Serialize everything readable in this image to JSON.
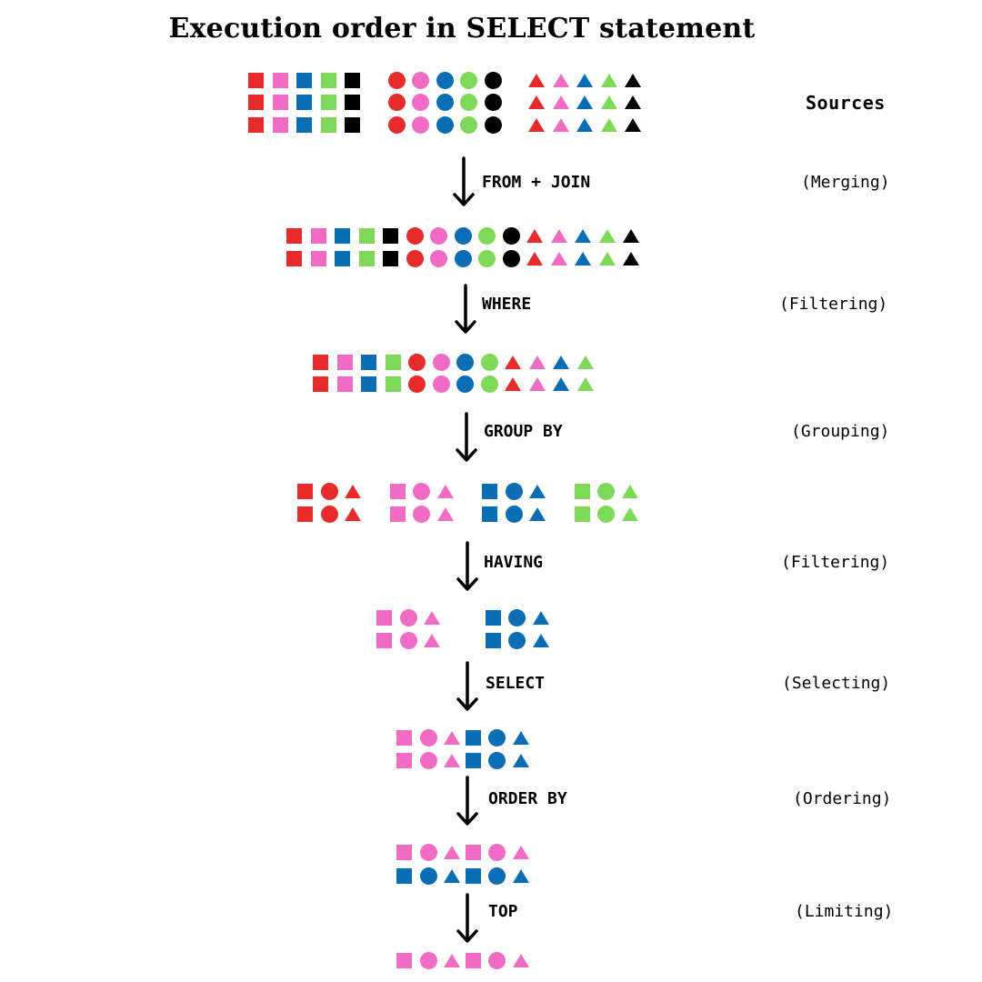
{
  "title": "Execution order in  SELECT statement",
  "sources_label": "Sources",
  "colors": {
    "red": "#e82a2a",
    "pink": "#f06cc4",
    "blue": "#0b6db3",
    "green": "#7dd957",
    "black": "#000000"
  },
  "steps": [
    {
      "clause": "FROM + JOIN",
      "description": "(Merging)"
    },
    {
      "clause": "WHERE",
      "description": "(Filtering)"
    },
    {
      "clause": "GROUP BY",
      "description": "(Grouping)"
    },
    {
      "clause": "HAVING",
      "description": "(Filtering)"
    },
    {
      "clause": "SELECT",
      "description": "(Selecting)"
    },
    {
      "clause": "ORDER BY",
      "description": "(Ordering)"
    },
    {
      "clause": "TOP",
      "description": "(Limiting)"
    }
  ],
  "shape_rows": [
    {
      "name": "source-rows",
      "rows": [
        "sr sp sb sg sk cr cp cb cg ck tr tp tb tg tk",
        "sr sp sb sg sk cr cp cb cg ck tr tp tb tg tk",
        "sr sp sb sg sk cr cp cb cg ck tr tp tb tg tk"
      ]
    },
    {
      "name": "merged-rows",
      "rows": [
        "sr sp sb sg sk cr cp cb cg ck tr tp tb tg tk",
        "sr sp sb sg sk cr cp cb cg ck tr tp tb tg tk"
      ]
    },
    {
      "name": "filtered-rows",
      "rows": [
        "sr sp sb sg cr cp cb cg tr tp tb tg",
        "sr sp sb sg cr cp cb cg tr tp tb tg"
      ]
    },
    {
      "name": "grouped-rows",
      "rows": [
        "sr cr tr sp cp tp sb cb tb sg cg tg",
        "sr cr tr sp cp tp sb cb tb sg cg tg"
      ]
    },
    {
      "name": "having-rows",
      "rows": [
        "sp cp tp sb cb tb",
        "sp cp tp sb cb tb"
      ]
    },
    {
      "name": "selected-rows",
      "rows": [
        "sp cp tp sb cb tb",
        "sp cp tp sb cb tb"
      ]
    },
    {
      "name": "ordered-rows",
      "rows": [
        "sp cp tp sp cp tp",
        "sb cb tb sb cb tb"
      ]
    },
    {
      "name": "limited-rows",
      "rows": [
        "sp cp tp sp cp tp"
      ]
    }
  ]
}
